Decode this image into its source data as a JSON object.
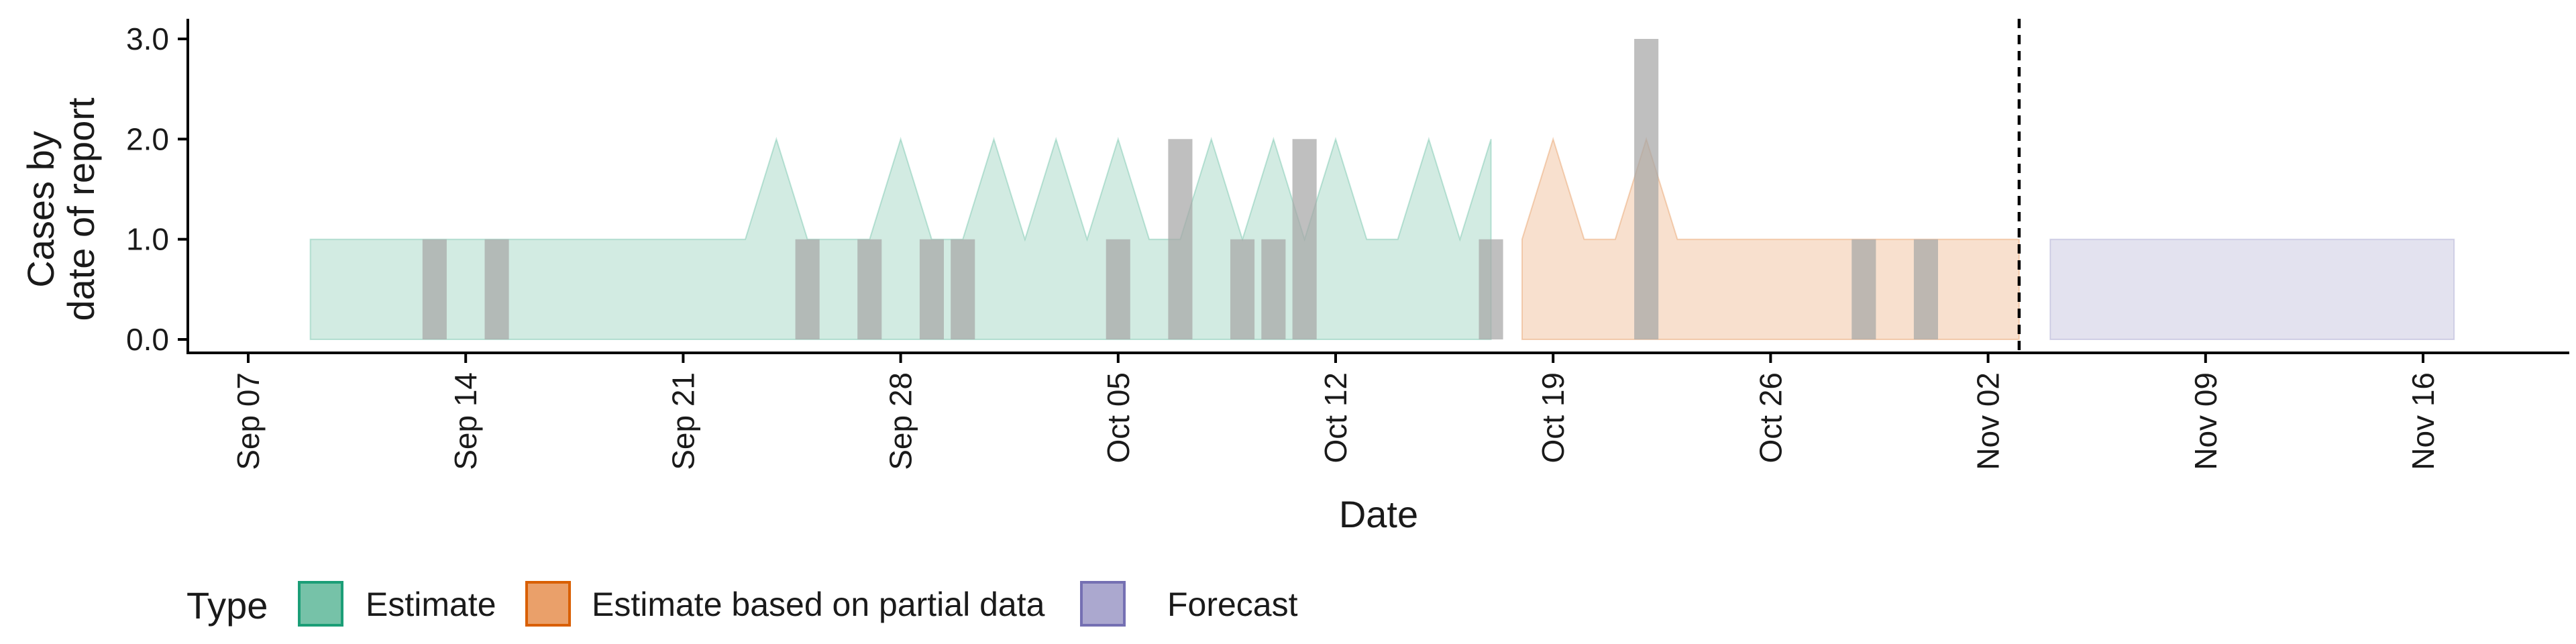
{
  "chart_data": {
    "type": "area",
    "title": "",
    "xlabel": "Date",
    "ylabel_lines": [
      "Cases by",
      "date of report"
    ],
    "xlim": [
      "2020-09-07",
      "2020-11-21"
    ],
    "ylim": [
      0,
      3.1
    ],
    "y_ticks": [
      0.0,
      1.0,
      2.0,
      3.0
    ],
    "y_tick_labels": [
      "0.0",
      "1.0",
      "2.0",
      "3.0"
    ],
    "x_ticks": [
      {
        "date": "2020-09-07",
        "label": "Sep 07"
      },
      {
        "date": "2020-09-14",
        "label": "Sep 14"
      },
      {
        "date": "2020-09-21",
        "label": "Sep 21"
      },
      {
        "date": "2020-09-28",
        "label": "Sep 28"
      },
      {
        "date": "2020-10-05",
        "label": "Oct 05"
      },
      {
        "date": "2020-10-12",
        "label": "Oct 12"
      },
      {
        "date": "2020-10-19",
        "label": "Oct 19"
      },
      {
        "date": "2020-10-26",
        "label": "Oct 26"
      },
      {
        "date": "2020-11-02",
        "label": "Nov 02"
      },
      {
        "date": "2020-11-09",
        "label": "Nov 09"
      },
      {
        "date": "2020-11-16",
        "label": "Nov 16"
      }
    ],
    "grid": false,
    "legend": {
      "title": "Type",
      "position": "bottom",
      "entries": [
        {
          "label": "Estimate",
          "fill": "#76c2a8",
          "stroke": "#1b9e77"
        },
        {
          "label": "Estimate based on partial data",
          "fill": "#eaa06a",
          "stroke": "#d95f02"
        },
        {
          "label": "Forecast",
          "fill": "#aba8cf",
          "stroke": "#7570b3"
        }
      ]
    },
    "vline_date": "2020-11-03",
    "series": [
      {
        "name": "Estimate",
        "color": "#1b9e77",
        "x": [
          "2020-09-09",
          "2020-09-10",
          "2020-09-11",
          "2020-09-12",
          "2020-09-13",
          "2020-09-14",
          "2020-09-15",
          "2020-09-16",
          "2020-09-17",
          "2020-09-18",
          "2020-09-19",
          "2020-09-20",
          "2020-09-21",
          "2020-09-22",
          "2020-09-23",
          "2020-09-24",
          "2020-09-25",
          "2020-09-26",
          "2020-09-27",
          "2020-09-28",
          "2020-09-29",
          "2020-09-30",
          "2020-10-01",
          "2020-10-02",
          "2020-10-03",
          "2020-10-04",
          "2020-10-05",
          "2020-10-06",
          "2020-10-07",
          "2020-10-08",
          "2020-10-09",
          "2020-10-10",
          "2020-10-11",
          "2020-10-12",
          "2020-10-13",
          "2020-10-14",
          "2020-10-15",
          "2020-10-16",
          "2020-10-17"
        ],
        "lower": [
          0,
          0,
          0,
          0,
          0,
          0,
          0,
          0,
          0,
          0,
          0,
          0,
          0,
          0,
          0,
          0,
          0,
          0,
          0,
          0,
          0,
          0,
          0,
          0,
          0,
          0,
          0,
          0,
          0,
          0,
          0,
          0,
          0,
          0,
          0,
          0,
          0,
          0,
          0
        ],
        "upper": [
          1,
          1,
          1,
          1,
          1,
          1,
          1,
          1,
          1,
          1,
          1,
          1,
          1,
          1,
          1,
          2,
          1,
          1,
          1,
          2,
          1,
          1,
          2,
          1,
          2,
          1,
          2,
          1,
          1,
          2,
          1,
          2,
          1,
          2,
          1,
          1,
          2,
          1,
          2
        ]
      },
      {
        "name": "Estimate based on partial data",
        "color": "#d95f02",
        "x": [
          "2020-10-18",
          "2020-10-19",
          "2020-10-20",
          "2020-10-21",
          "2020-10-22",
          "2020-10-23",
          "2020-10-24",
          "2020-10-25",
          "2020-10-26",
          "2020-10-27",
          "2020-10-28",
          "2020-10-29",
          "2020-10-30",
          "2020-10-31",
          "2020-11-01",
          "2020-11-02",
          "2020-11-03"
        ],
        "lower": [
          0,
          0,
          0,
          0,
          0,
          0,
          0,
          0,
          0,
          0,
          0,
          0,
          0,
          0,
          0,
          0,
          0
        ],
        "upper": [
          1,
          2,
          1,
          1,
          2,
          1,
          1,
          1,
          1,
          1,
          1,
          1,
          1,
          1,
          1,
          1,
          1
        ]
      },
      {
        "name": "Forecast",
        "color": "#7570b3",
        "x": [
          "2020-11-04",
          "2020-11-05",
          "2020-11-06",
          "2020-11-07",
          "2020-11-08",
          "2020-11-09",
          "2020-11-10",
          "2020-11-11",
          "2020-11-12",
          "2020-11-13",
          "2020-11-14",
          "2020-11-15",
          "2020-11-16",
          "2020-11-17"
        ],
        "lower": [
          0,
          0,
          0,
          0,
          0,
          0,
          0,
          0,
          0,
          0,
          0,
          0,
          0,
          0
        ],
        "upper": [
          1,
          1,
          1,
          1,
          1,
          1,
          1,
          1,
          1,
          1,
          1,
          1,
          1,
          1
        ]
      }
    ],
    "reported_cases": {
      "color": "#a6a6a6",
      "points": [
        {
          "date": "2020-09-13",
          "value": 1
        },
        {
          "date": "2020-09-15",
          "value": 1
        },
        {
          "date": "2020-09-25",
          "value": 1
        },
        {
          "date": "2020-09-27",
          "value": 1
        },
        {
          "date": "2020-09-29",
          "value": 1
        },
        {
          "date": "2020-09-30",
          "value": 1
        },
        {
          "date": "2020-10-05",
          "value": 1
        },
        {
          "date": "2020-10-07",
          "value": 2
        },
        {
          "date": "2020-10-09",
          "value": 1
        },
        {
          "date": "2020-10-10",
          "value": 1
        },
        {
          "date": "2020-10-11",
          "value": 2
        },
        {
          "date": "2020-10-17",
          "value": 1
        },
        {
          "date": "2020-10-22",
          "value": 3
        },
        {
          "date": "2020-10-29",
          "value": 1
        },
        {
          "date": "2020-10-31",
          "value": 1
        }
      ]
    }
  }
}
